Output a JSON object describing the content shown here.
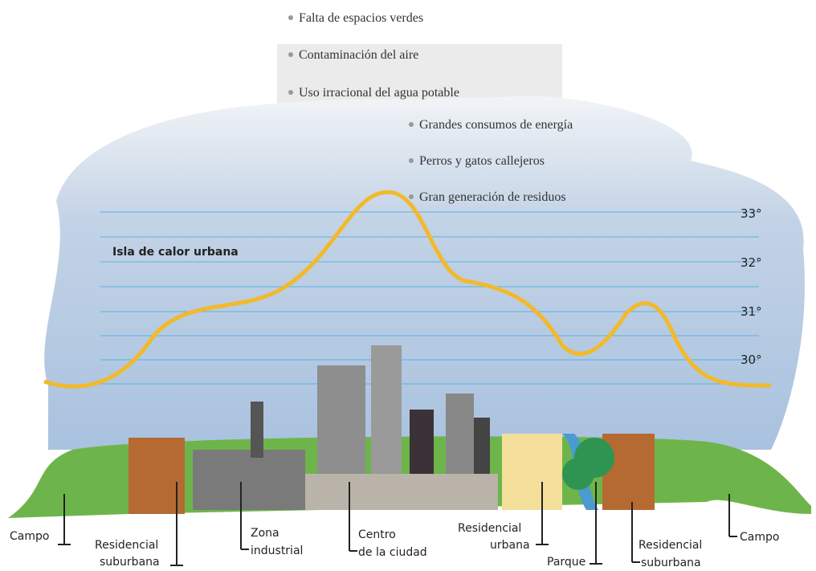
{
  "problems": [
    "Falta de espacios verdes",
    "Contaminación del aire",
    "Uso irracional del agua potable",
    "Grandes consumos de energía",
    "Perros y gatos callejeros",
    "Gran generación de residuos"
  ],
  "title": "Isla de calor urbana",
  "temperatures": [
    "33°",
    "32°",
    "31°",
    "30°"
  ],
  "zones": [
    {
      "lines": [
        "Campo"
      ]
    },
    {
      "lines": [
        "Residencial",
        "suburbana"
      ]
    },
    {
      "lines": [
        "Zona",
        "industrial"
      ]
    },
    {
      "lines": [
        "Centro",
        "de la ciudad"
      ]
    },
    {
      "lines": [
        "Residencial",
        "urbana"
      ]
    },
    {
      "lines": [
        "Parque"
      ]
    },
    {
      "lines": [
        "Residencial",
        "suburbana"
      ]
    },
    {
      "lines": [
        "Campo"
      ]
    }
  ]
}
